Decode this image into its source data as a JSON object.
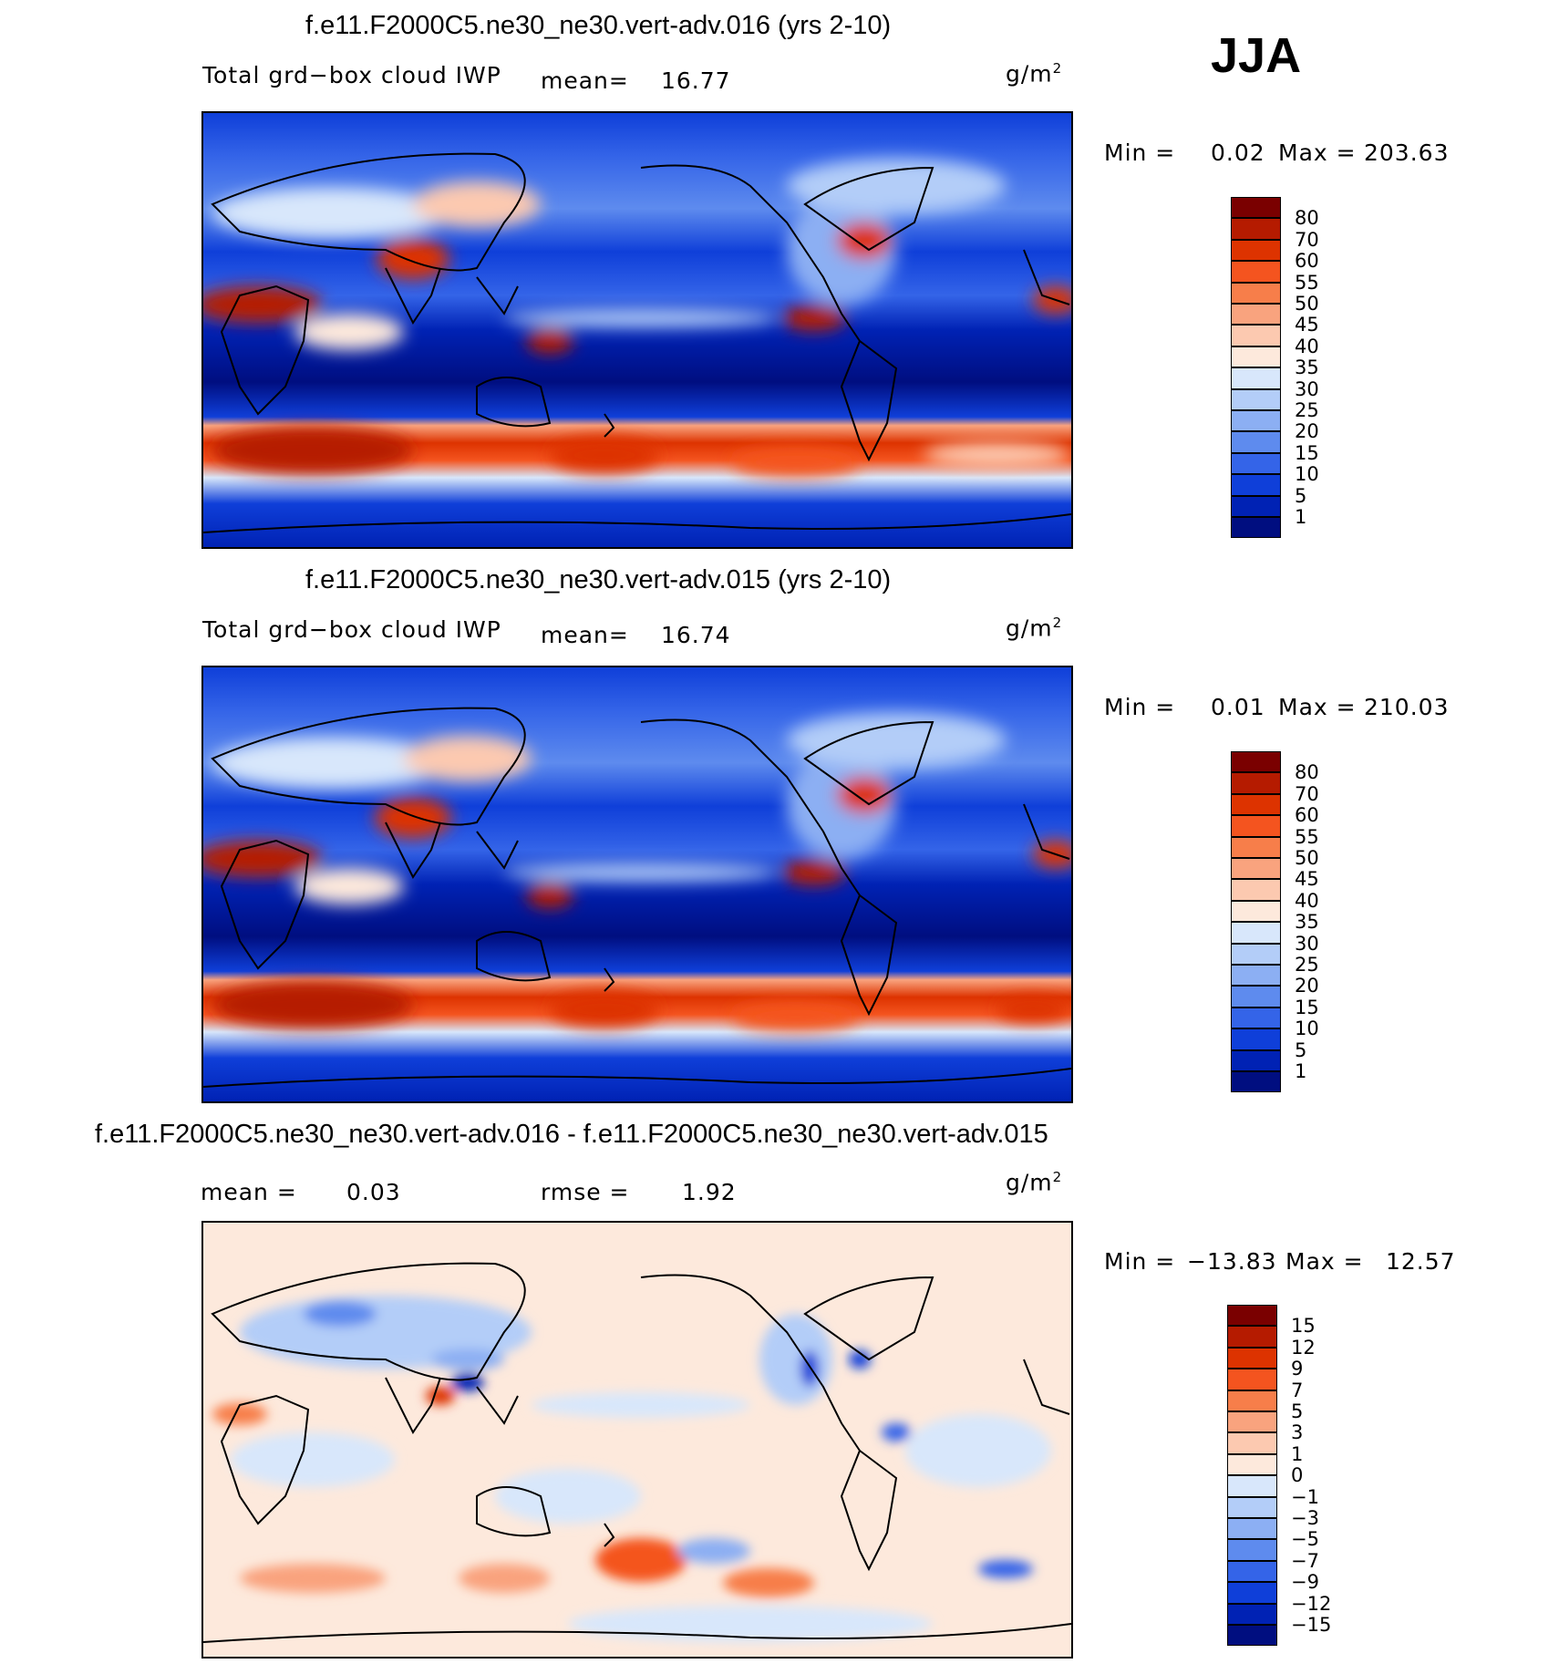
{
  "season": "JJA",
  "units": "g/m",
  "units_sup": "2",
  "panels": [
    {
      "title": "f.e11.F2000C5.ne30_ne30.vert-adv.016 (yrs 2-10)",
      "variable": "Total grd−box cloud IWP",
      "mean_label": "mean=",
      "mean_value": "16.77",
      "min_label": "Min =",
      "min_value": "0.02",
      "max_label": "Max =",
      "max_value": "203.63"
    },
    {
      "title": "f.e11.F2000C5.ne30_ne30.vert-adv.015 (yrs 2-10)",
      "variable": "Total grd−box cloud IWP",
      "mean_label": "mean=",
      "mean_value": "16.74",
      "min_label": "Min =",
      "min_value": "0.01",
      "max_label": "Max =",
      "max_value": "210.03"
    },
    {
      "title": "f.e11.F2000C5.ne30_ne30.vert-adv.016 - f.e11.F2000C5.ne30_ne30.vert-adv.015",
      "mean_label": "mean =",
      "mean_value": "0.03",
      "rmse_label": "rmse =",
      "rmse_value": "1.92",
      "min_label": "Min =",
      "min_value": "−13.83",
      "max_label": "Max =",
      "max_value": "12.57"
    }
  ],
  "colorbars": {
    "field": {
      "labels": [
        "80",
        "70",
        "60",
        "55",
        "50",
        "45",
        "40",
        "35",
        "30",
        "25",
        "20",
        "15",
        "10",
        "5",
        "1"
      ],
      "colors": [
        "#7a0000",
        "#b51b00",
        "#dd3300",
        "#f4541f",
        "#f77e4a",
        "#f9a37e",
        "#fcc9b0",
        "#fde9dc",
        "#d8e7fb",
        "#b3cdf8",
        "#8caff3",
        "#5e8bee",
        "#3464e8",
        "#0f3fd9",
        "#0022b4",
        "#000e80"
      ]
    },
    "diff": {
      "labels": [
        "15",
        "12",
        "9",
        "7",
        "5",
        "3",
        "1",
        "0",
        "−1",
        "−3",
        "−5",
        "−7",
        "−9",
        "−12",
        "−15"
      ],
      "colors": [
        "#7a0000",
        "#b51b00",
        "#dd3300",
        "#f4541f",
        "#f77e4a",
        "#f9a37e",
        "#fcc9b0",
        "#fde9dc",
        "#d8e7fb",
        "#b3cdf8",
        "#8caff3",
        "#5e8bee",
        "#3464e8",
        "#0f3fd9",
        "#0022b4",
        "#000e80"
      ]
    }
  }
}
